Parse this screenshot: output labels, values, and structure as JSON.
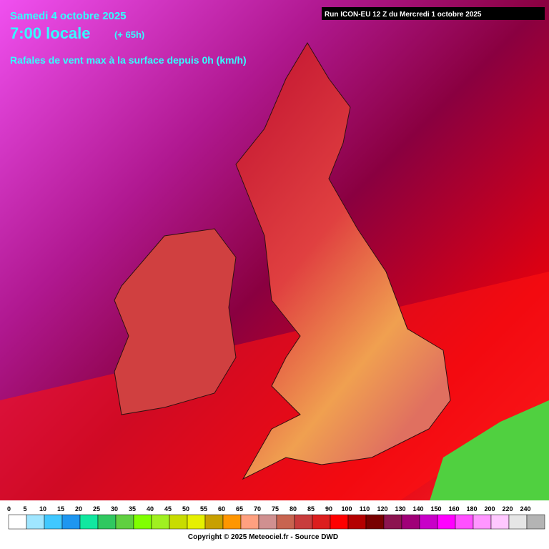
{
  "header": {
    "date": "Samedi 4 octobre 2025",
    "time": "7:00 locale",
    "lead": "(+ 65h)",
    "title": "Rafales de vent max à la surface depuis 0h (km/h)",
    "run": "Run ICON-EU 12 Z du Mercredi 1 octobre 2025"
  },
  "legend": {
    "labels": [
      0,
      5,
      10,
      15,
      20,
      25,
      30,
      35,
      40,
      45,
      50,
      55,
      60,
      65,
      70,
      75,
      80,
      85,
      90,
      100,
      110,
      120,
      130,
      140,
      150,
      160,
      180,
      200,
      220,
      240
    ],
    "colors": [
      "#ffffff",
      "#a0e6ff",
      "#40c8ff",
      "#1e96f0",
      "#10e8a0",
      "#30c860",
      "#60d040",
      "#80ff00",
      "#a0f020",
      "#c8dc00",
      "#e6f000",
      "#c8a000",
      "#ff9600",
      "#ffa080",
      "#d09090",
      "#c86450",
      "#c83c3c",
      "#dc1e1e",
      "#ff0000",
      "#b40000",
      "#780000",
      "#8c1450",
      "#a00078",
      "#c800c8",
      "#ff00ff",
      "#ff50ff",
      "#ff96ff",
      "#ffc8ff",
      "#e6e6e6",
      "#b4b4b4"
    ]
  },
  "footer": {
    "copyright": "Copyright © 2025 Meteociel.fr - Source DWD"
  }
}
